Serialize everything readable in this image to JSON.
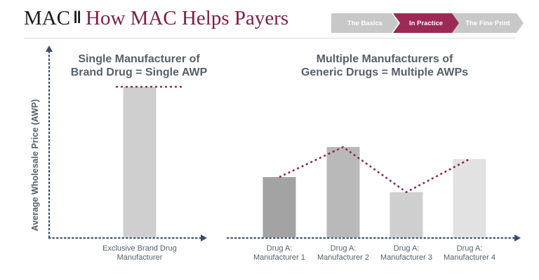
{
  "header": {
    "brand": "MAC",
    "separator": "‖",
    "title": "How MAC Helps Payers"
  },
  "steps": [
    "The Basics",
    "In Practice",
    "The Fine Print"
  ],
  "colors": {
    "accent": "#7b2145",
    "axis": "#3b4e6b",
    "dotted_line": "#8e2a4a",
    "step_active": "#9b2a55",
    "step_inactive": "#c8c8c8",
    "text": "#56606a"
  },
  "chart_data": {
    "type": "bar",
    "ylabel": "Average Wholesale Price (AWP)",
    "xlabel": "",
    "ylim": [
      0,
      100
    ],
    "groups": [
      {
        "heading_line1": "Single Manufacturer of",
        "heading_line2": "Brand Drug = Single AWP",
        "line_type": "flat",
        "bars": [
          {
            "label_line1": "Exclusive Brand Drug",
            "label_line2": "Manufacturer",
            "value": 100,
            "color": "#cfcfcf"
          }
        ]
      },
      {
        "heading_line1": "Multiple Manufacturers of",
        "heading_line2": "Generic Drugs = Multiple AWPs",
        "line_type": "connect",
        "bars": [
          {
            "label_line1": "Drug A:",
            "label_line2": "Manufacturer 1",
            "value": 40,
            "color": "#a3a3a3"
          },
          {
            "label_line1": "Drug A:",
            "label_line2": "Manufacturer 2",
            "value": 60,
            "color": "#b9b9b9"
          },
          {
            "label_line1": "Drug A:",
            "label_line2": "Manufacturer 3",
            "value": 30,
            "color": "#cfcfcf"
          },
          {
            "label_line1": "Drug A:",
            "label_line2": "Manufacturer 4",
            "value": 52,
            "color": "#e2e2e2"
          }
        ]
      }
    ]
  }
}
